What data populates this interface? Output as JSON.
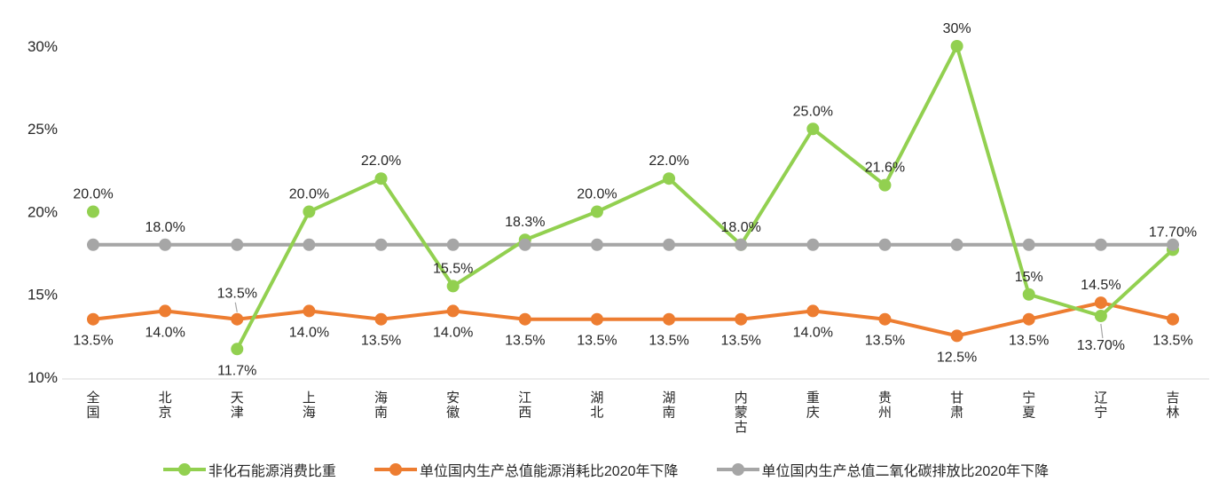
{
  "chart_data": {
    "type": "line",
    "title": "",
    "xlabel": "",
    "ylabel": "",
    "ylim": [
      10,
      30
    ],
    "grid": false,
    "legend_position": "bottom",
    "yticks": [
      {
        "value": 30,
        "label": "30%"
      },
      {
        "value": 25,
        "label": "25%"
      },
      {
        "value": 20,
        "label": "20%"
      },
      {
        "value": 15,
        "label": "15%"
      },
      {
        "value": 10,
        "label": "10%"
      }
    ],
    "categories": [
      "全国",
      "北京",
      "天津",
      "上海",
      "海南",
      "安徽",
      "江西",
      "湖北",
      "湖南",
      "内蒙古",
      "重庆",
      "贵州",
      "甘肃",
      "宁夏",
      "辽宁",
      "吉林"
    ],
    "series": [
      {
        "key": "non-fossil-energy-share",
        "name": "非化石能源消费比重",
        "color": "#92D050",
        "values": [
          20.0,
          null,
          11.7,
          20.0,
          22.0,
          15.5,
          18.3,
          20.0,
          22.0,
          18.0,
          25.0,
          21.6,
          30,
          15,
          13.7,
          17.7
        ],
        "labels": [
          "20.0%",
          "",
          "11.7%",
          "20.0%",
          "22.0%",
          "15.5%",
          "18.3%",
          "20.0%",
          "22.0%",
          "18.0%",
          "25.0%",
          "21.6%",
          "30%",
          "15%",
          "13.70%",
          "17.70%"
        ],
        "label_pos": [
          "above",
          "",
          "below",
          "above",
          "above",
          "above",
          "above",
          "above",
          "above",
          "above",
          "above",
          "above",
          "above",
          "above",
          "below-leader",
          "above"
        ]
      },
      {
        "key": "energy-intensity-reduction",
        "name": "单位国内生产总值能源消耗比2020年下降",
        "color": "#ED7D31",
        "values": [
          13.5,
          14.0,
          13.5,
          14.0,
          13.5,
          14.0,
          13.5,
          13.5,
          13.5,
          13.5,
          14.0,
          13.5,
          12.5,
          13.5,
          14.5,
          13.5
        ],
        "labels": [
          "13.5%",
          "14.0%",
          "13.5%",
          "14.0%",
          "13.5%",
          "14.0%",
          "13.5%",
          "13.5%",
          "13.5%",
          "13.5%",
          "14.0%",
          "13.5%",
          "12.5%",
          "13.5%",
          "14.5%",
          "13.5%"
        ],
        "label_pos": [
          "below",
          "below",
          "above-leader",
          "below",
          "below",
          "below",
          "below",
          "below",
          "below",
          "below",
          "below",
          "below",
          "below",
          "below",
          "above",
          "below"
        ]
      },
      {
        "key": "co2-intensity-reduction",
        "name": "单位国内生产总值二氧化碳排放比2020年下降",
        "color": "#A6A6A6",
        "values": [
          18,
          18,
          18,
          18,
          18,
          18,
          18,
          18,
          18,
          18,
          18,
          18,
          18,
          18,
          18,
          18
        ],
        "labels": [
          "",
          "18.0%",
          "",
          "",
          "",
          "",
          "",
          "",
          "",
          "",
          "",
          "",
          "",
          "",
          "",
          ""
        ],
        "label_pos": [
          "",
          "above",
          "",
          "",
          "",
          "",
          "",
          "",
          "",
          "",
          "",
          "",
          "",
          "",
          "",
          ""
        ]
      }
    ],
    "colors": {
      "axis_line": "#D9D9D9",
      "text": "#262626",
      "leader_line": "#A6A6A6"
    }
  }
}
